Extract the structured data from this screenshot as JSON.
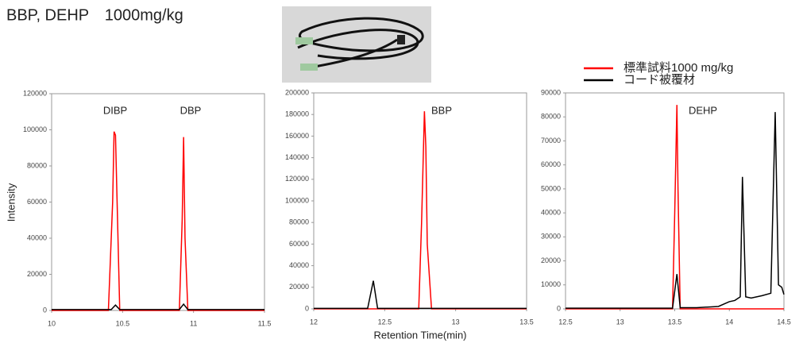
{
  "caption": "BBP, DEHP　1000mg/kg",
  "chart_data": [
    {
      "type": "line",
      "ylabel": "Intensity",
      "annotations": [
        "DIBP",
        "DBP"
      ],
      "xlim": [
        10,
        11.5
      ],
      "xticks": [
        10,
        10.5,
        11,
        11.5
      ],
      "ylim": [
        0,
        120000
      ],
      "yticks": [
        0,
        20000,
        40000,
        60000,
        80000,
        100000,
        120000
      ],
      "series": [
        {
          "color": "#ff0000",
          "x": [
            10,
            10.4,
            10.43,
            10.44,
            10.45,
            10.48,
            10.9,
            10.92,
            10.93,
            10.94,
            10.96,
            11.5
          ],
          "values": [
            0,
            0,
            60000,
            99000,
            97000,
            0,
            0,
            50000,
            96000,
            40000,
            0,
            0
          ]
        },
        {
          "color": "#000000",
          "x": [
            10,
            10.42,
            10.45,
            10.48,
            10.9,
            10.93,
            10.96,
            11.5
          ],
          "values": [
            500,
            500,
            3000,
            500,
            500,
            3500,
            500,
            500
          ]
        }
      ]
    },
    {
      "type": "line",
      "xlabel": "Retention Time(min)",
      "annotations": [
        "BBP"
      ],
      "xlim": [
        12,
        13.5
      ],
      "xticks": [
        12,
        12.5,
        13,
        13.5
      ],
      "ylim": [
        0,
        200000
      ],
      "yticks": [
        0,
        20000,
        40000,
        60000,
        80000,
        100000,
        120000,
        140000,
        160000,
        180000,
        200000
      ],
      "series": [
        {
          "color": "#ff0000",
          "x": [
            12,
            12.74,
            12.76,
            12.78,
            12.79,
            12.8,
            12.83,
            13.5
          ],
          "values": [
            0,
            0,
            80000,
            183000,
            150000,
            60000,
            0,
            0
          ]
        },
        {
          "color": "#000000",
          "x": [
            12,
            12.38,
            12.42,
            12.45,
            12.5,
            13.5
          ],
          "values": [
            500,
            500,
            26000,
            500,
            500,
            500
          ]
        }
      ]
    },
    {
      "type": "line",
      "annotations": [
        "DEHP"
      ],
      "xlim": [
        12.5,
        14.5
      ],
      "xticks": [
        12.5,
        13,
        13.5,
        14,
        14.5
      ],
      "ylim": [
        0,
        90000
      ],
      "yticks": [
        0,
        10000,
        20000,
        30000,
        40000,
        50000,
        60000,
        70000,
        80000,
        90000
      ],
      "series": [
        {
          "name": "標準試料1000 mg/kg",
          "color": "#ff0000",
          "x": [
            12.5,
            13.48,
            13.5,
            13.52,
            13.53,
            13.55,
            14.5
          ],
          "values": [
            0,
            0,
            40000,
            85000,
            50000,
            0,
            0
          ]
        },
        {
          "name": "コード被覆材",
          "color": "#000000",
          "x": [
            12.5,
            13.48,
            13.52,
            13.55,
            13.7,
            13.9,
            14.0,
            14.05,
            14.1,
            14.12,
            14.15,
            14.2,
            14.3,
            14.38,
            14.42,
            14.45,
            14.48,
            14.5
          ],
          "values": [
            300,
            300,
            14500,
            500,
            500,
            1000,
            3000,
            3500,
            5000,
            55000,
            5000,
            4500,
            5500,
            6500,
            82000,
            10000,
            9000,
            6000
          ]
        }
      ]
    }
  ]
}
